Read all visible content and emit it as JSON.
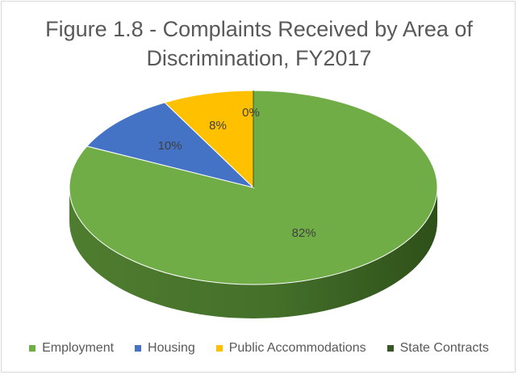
{
  "chart_data": {
    "type": "pie",
    "title_line1": "Figure 1.8 - Complaints Received by Area of",
    "title_line2": "Discrimination, FY2017",
    "slices": [
      {
        "name": "Employment",
        "value": 82,
        "label": "82%",
        "color": "#70ad47"
      },
      {
        "name": "Housing",
        "value": 10,
        "label": "10%",
        "color": "#4472c4"
      },
      {
        "name": "Public Accommodations",
        "value": 8,
        "label": "8%",
        "color": "#ffc000"
      },
      {
        "name": "State Contracts",
        "value": 0,
        "label": "0%",
        "color": "#375623"
      }
    ],
    "legend_position": "bottom",
    "style": "3d"
  }
}
